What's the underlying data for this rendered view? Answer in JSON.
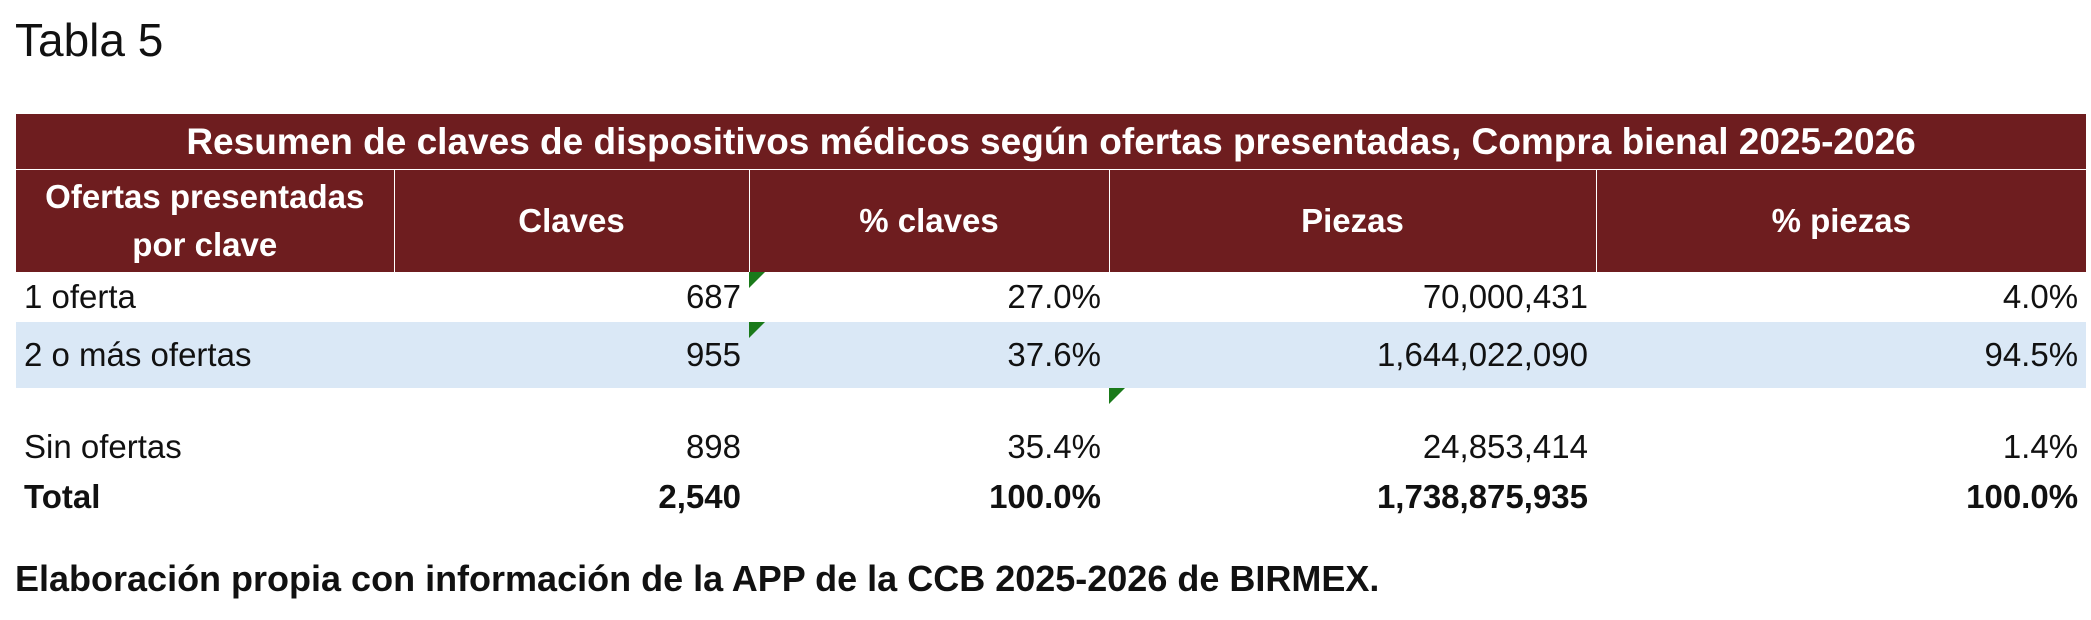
{
  "caption": "Tabla 5",
  "table": {
    "title": "Resumen de claves de dispositivos médicos según ofertas presentadas, Compra bienal 2025-2026",
    "headers": [
      "Ofertas presentadas por clave",
      "Claves",
      "% claves",
      "Piezas",
      "% piezas"
    ],
    "rows": [
      {
        "label": "1 oferta",
        "claves": "687",
        "pct_claves": "27.0%",
        "piezas": "70,000,431",
        "pct_piezas": "4.0%"
      },
      {
        "label": "2 o más ofertas",
        "claves": "955",
        "pct_claves": "37.6%",
        "piezas": "1,644,022,090",
        "pct_piezas": "94.5%"
      },
      {
        "label": "Sin ofertas",
        "claves": "898",
        "pct_claves": "35.4%",
        "piezas": "24,853,414",
        "pct_piezas": "1.4%"
      }
    ],
    "total": {
      "label": "Total",
      "claves": "2,540",
      "pct_claves": "100.0%",
      "piezas": "1,738,875,935",
      "pct_piezas": "100.0%"
    }
  },
  "source_note": "Elaboración propia con información de la APP de la CCB 2025-2026 de BIRMEX.",
  "colors": {
    "header_bg": "#6e1d1f",
    "header_text": "#ffffff",
    "band_row_bg": "#dae8f6",
    "comment_marker": "#1a7a1a"
  }
}
